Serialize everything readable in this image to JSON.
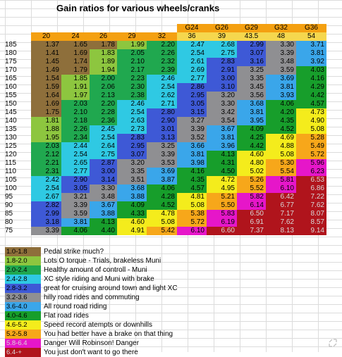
{
  "title": "Gain ratios for various wheels/cranks",
  "colors": {
    "orange_header": "#f4a011",
    "yellow_header": "#f5d74e",
    "band_brown": "#8e6f3b",
    "band_lime": "#8dc63f",
    "band_green": "#20a84f",
    "band_cyan": "#2fc9e3",
    "band_blue": "#3e59d6",
    "band_gray": "#8f8f92",
    "band_skyblue": "#3aa6ea",
    "band_darkgreen": "#179e2b",
    "band_yellow": "#f4ec1c",
    "band_orange": "#f7a71a",
    "band_magenta": "#e616c9",
    "band_red": "#b0141c"
  },
  "wheel_labels": [
    "G24",
    "G26",
    "G29",
    "G32",
    "G36"
  ],
  "wheels": [
    "20",
    "24",
    "26",
    "29",
    "32",
    "36",
    "39",
    "43.5",
    "48",
    "54"
  ],
  "cranks": [
    "185",
    "180",
    "175",
    "170",
    "165",
    "160",
    "155",
    "150",
    "145",
    "140",
    "135",
    "130",
    "125",
    "120",
    "115",
    "110",
    "105",
    "100",
    "95",
    "90",
    "85",
    "80",
    "75"
  ],
  "rows": [
    [
      "1.37",
      "1.65",
      "1.78",
      "1.99",
      "2.20",
      "2.47",
      "2.68",
      "2.99",
      "3.30",
      "3.71"
    ],
    [
      "1.41",
      "1.69",
      "1.83",
      "2.05",
      "2.26",
      "2.54",
      "2.75",
      "3.07",
      "3.39",
      "3.81"
    ],
    [
      "1.45",
      "1.74",
      "1.89",
      "2.10",
      "2.32",
      "2.61",
      "2.83",
      "3.16",
      "3.48",
      "3.92"
    ],
    [
      "1.49",
      "1.79",
      "1.94",
      "2.17",
      "2.39",
      "2.69",
      "2.91",
      "3.25",
      "3.59",
      "4.03"
    ],
    [
      "1.54",
      "1.85",
      "2.00",
      "2.23",
      "2.46",
      "2.77",
      "3.00",
      "3.35",
      "3.69",
      "4.16"
    ],
    [
      "1.59",
      "1.91",
      "2.06",
      "2.30",
      "2.54",
      "2.86",
      "3.10",
      "3.45",
      "3.81",
      "4.29"
    ],
    [
      "1.64",
      "1.97",
      "2.13",
      "2.38",
      "2.62",
      "2.95",
      "3.20",
      "3.56",
      "3.93",
      "4.42"
    ],
    [
      "1.69",
      "2.03",
      "2.20",
      "2.46",
      "2.71",
      "3.05",
      "3.30",
      "3.68",
      "4.06",
      "4.57"
    ],
    [
      "1.75",
      "2.10",
      "2.28",
      "2.54",
      "2.80",
      "3.15",
      "3.42",
      "3.81",
      "4.20",
      "4.73"
    ],
    [
      "1.81",
      "2.18",
      "2.36",
      "2.63",
      "2.90",
      "3.27",
      "3.54",
      "3.95",
      "4.35",
      "4.90"
    ],
    [
      "1.88",
      "2.26",
      "2.45",
      "2.73",
      "3.01",
      "3.39",
      "3.67",
      "4.09",
      "4.52",
      "5.08"
    ],
    [
      "1.95",
      "2.34",
      "2.54",
      "2.83",
      "3.13",
      "3.52",
      "3.81",
      "4.25",
      "4.69",
      "5.28"
    ],
    [
      "2.03",
      "2.44",
      "2.64",
      "2.95",
      "3.25",
      "3.66",
      "3.96",
      "4.42",
      "4.88",
      "5.49"
    ],
    [
      "2.12",
      "2.54",
      "2.75",
      "3.07",
      "3.39",
      "3.81",
      "4.13",
      "4.60",
      "5.08",
      "5.72"
    ],
    [
      "2.21",
      "2.65",
      "2.87",
      "3.20",
      "3.53",
      "3.98",
      "4.31",
      "4.80",
      "5.30",
      "5.96"
    ],
    [
      "2.31",
      "2.77",
      "3.00",
      "3.35",
      "3.69",
      "4.16",
      "4.50",
      "5.02",
      "5.54",
      "6.23"
    ],
    [
      "2.42",
      "2.90",
      "3.14",
      "3.51",
      "3.87",
      "4.35",
      "4.72",
      "5.26",
      "5.81",
      "6.53"
    ],
    [
      "2.54",
      "3.05",
      "3.30",
      "3.68",
      "4.06",
      "4.57",
      "4.95",
      "5.52",
      "6.10",
      "6.86"
    ],
    [
      "2.67",
      "3.21",
      "3.48",
      "3.88",
      "4.28",
      "4.81",
      "5.21",
      "5.82",
      "6.42",
      "7.22"
    ],
    [
      "2.82",
      "3.39",
      "3.67",
      "4.09",
      "4.52",
      "5.08",
      "5.50",
      "6.14",
      "6.77",
      "7.62"
    ],
    [
      "2.99",
      "3.59",
      "3.88",
      "4.33",
      "4.78",
      "5.38",
      "5.83",
      "6.50",
      "7.17",
      "8.07"
    ],
    [
      "3.18",
      "3.81",
      "4.13",
      "4.60",
      "5.08",
      "5.72",
      "6.19",
      "6.91",
      "7.62",
      "8.57"
    ],
    [
      "3.39",
      "4.06",
      "4.40",
      "4.91",
      "5.42",
      "6.10",
      "6.60",
      "7.37",
      "8.13",
      "9.14"
    ]
  ],
  "legend": [
    {
      "range": "1.0-1.8",
      "text": "Pedal strike much?",
      "color": "#8e6f3b"
    },
    {
      "range": "1.8-2.0",
      "text": "Lots O torque - Trials, brakeless Muni",
      "color": "#8dc63f"
    },
    {
      "range": "2.0-2.4",
      "text": "Healthy amount of controll - Muni",
      "color": "#20a84f"
    },
    {
      "range": "2.4-2.8",
      "text": "XC style riding and Muni with brake",
      "color": "#2fc9e3"
    },
    {
      "range": "2.8-3.2",
      "text": "great for cruising around town and light XC",
      "color": "#3e59d6"
    },
    {
      "range": "3.2-3.6",
      "text": "hilly road rides and commuting",
      "color": "#8f8f92"
    },
    {
      "range": "3.6-4.0",
      "text": "All round road riding",
      "color": "#3aa6ea"
    },
    {
      "range": "4.0-4.6",
      "text": "Flat road rides",
      "color": "#179e2b"
    },
    {
      "range": "4.6-5.2",
      "text": "Speed record atempts or downhills",
      "color": "#f4ec1c"
    },
    {
      "range": "5.2-5.8",
      "text": "You had better have a brake on that thing",
      "color": "#f7a71a"
    },
    {
      "range": "5.8-6.4",
      "text": "Danger Will Robinson! Danger",
      "color": "#e616c9"
    },
    {
      "range": "6.4-+",
      "text": "You just don't want to go there",
      "color": "#b0141c"
    }
  ]
}
